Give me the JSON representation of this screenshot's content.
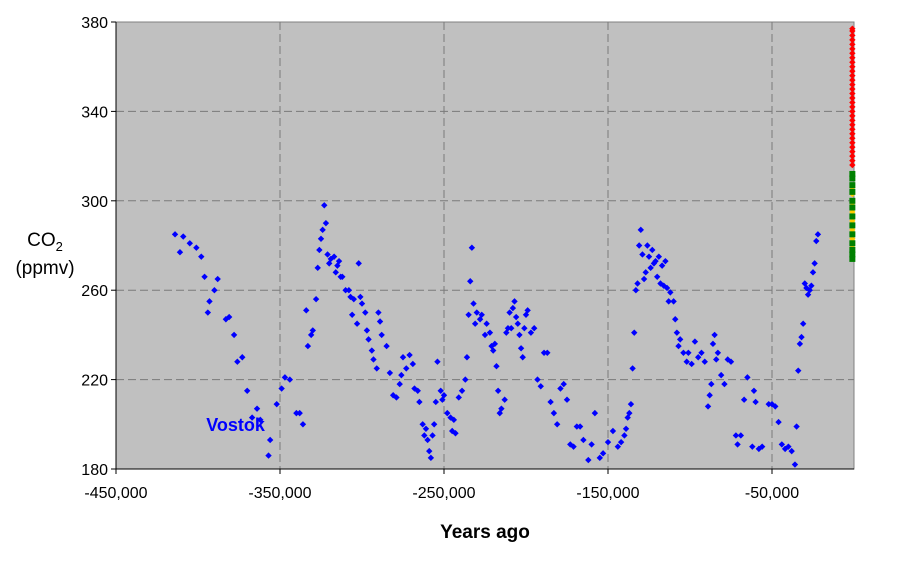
{
  "chart_data": {
    "type": "scatter",
    "xlabel": "Years ago",
    "ylabel_main": "CO",
    "ylabel_sub": "2",
    "ylabel_unit": "(ppmv)",
    "xlim": [
      -450000,
      0
    ],
    "ylim": [
      180,
      380
    ],
    "x_ticks": [
      -450000,
      -350000,
      -250000,
      -150000,
      -50000
    ],
    "x_tick_labels": [
      "-450,000",
      "-350,000",
      "-250,000",
      "-150,000",
      "-50,000"
    ],
    "y_ticks": [
      180,
      220,
      260,
      300,
      340,
      380
    ],
    "y_tick_labels": [
      "180",
      "220",
      "260",
      "300",
      "340",
      "380"
    ],
    "grid": true,
    "plot_background": "#c0c0c0",
    "series": [
      {
        "name": "Vostok",
        "color": "#0000ff",
        "marker": "diamond",
        "points": [
          [
            -414000,
            285
          ],
          [
            -411000,
            277
          ],
          [
            -409000,
            284
          ],
          [
            -405000,
            281
          ],
          [
            -401000,
            279
          ],
          [
            -398000,
            275
          ],
          [
            -396000,
            266
          ],
          [
            -394000,
            250
          ],
          [
            -393000,
            255
          ],
          [
            -390000,
            260
          ],
          [
            -388000,
            265
          ],
          [
            -383000,
            247
          ],
          [
            -381000,
            248
          ],
          [
            -378000,
            240
          ],
          [
            -376000,
            228
          ],
          [
            -373000,
            230
          ],
          [
            -370000,
            215
          ],
          [
            -367000,
            203
          ],
          [
            -364000,
            207
          ],
          [
            -362000,
            202
          ],
          [
            -357000,
            186
          ],
          [
            -356000,
            193
          ],
          [
            -352000,
            209
          ],
          [
            -349000,
            216
          ],
          [
            -347000,
            221
          ],
          [
            -344000,
            220
          ],
          [
            -340000,
            205
          ],
          [
            -338000,
            205
          ],
          [
            -336000,
            200
          ],
          [
            -334000,
            251
          ],
          [
            -333000,
            235
          ],
          [
            -331000,
            240
          ],
          [
            -330000,
            242
          ],
          [
            -328000,
            256
          ],
          [
            -327000,
            270
          ],
          [
            -326000,
            278
          ],
          [
            -325000,
            283
          ],
          [
            -324000,
            287
          ],
          [
            -323000,
            298
          ],
          [
            -322000,
            290
          ],
          [
            -321000,
            276
          ],
          [
            -320000,
            272
          ],
          [
            -319000,
            274
          ],
          [
            -317000,
            275
          ],
          [
            -316000,
            268
          ],
          [
            -315000,
            271
          ],
          [
            -314000,
            273
          ],
          [
            -313000,
            266
          ],
          [
            -312000,
            266
          ],
          [
            -310000,
            260
          ],
          [
            -308000,
            260
          ],
          [
            -307000,
            257
          ],
          [
            -306000,
            249
          ],
          [
            -305000,
            256
          ],
          [
            -303000,
            245
          ],
          [
            -302000,
            272
          ],
          [
            -301000,
            257
          ],
          [
            -300000,
            254
          ],
          [
            -298000,
            250
          ],
          [
            -297000,
            242
          ],
          [
            -296000,
            238
          ],
          [
            -294000,
            233
          ],
          [
            -293000,
            229
          ],
          [
            -291000,
            225
          ],
          [
            -290000,
            250
          ],
          [
            -289000,
            246
          ],
          [
            -288000,
            240
          ],
          [
            -285000,
            235
          ],
          [
            -283000,
            223
          ],
          [
            -281000,
            213
          ],
          [
            -279000,
            212
          ],
          [
            -277000,
            218
          ],
          [
            -276000,
            222
          ],
          [
            -275000,
            230
          ],
          [
            -273000,
            225
          ],
          [
            -271000,
            231
          ],
          [
            -269000,
            227
          ],
          [
            -268000,
            216
          ],
          [
            -266000,
            215
          ],
          [
            -265000,
            210
          ],
          [
            -263000,
            200
          ],
          [
            -262000,
            195
          ],
          [
            -261000,
            198
          ],
          [
            -260000,
            193
          ],
          [
            -259000,
            188
          ],
          [
            -258000,
            185
          ],
          [
            -257000,
            195
          ],
          [
            -256000,
            200
          ],
          [
            -255000,
            210
          ],
          [
            -254000,
            228
          ],
          [
            -252000,
            215
          ],
          [
            -251000,
            211
          ],
          [
            -250000,
            213
          ],
          [
            -248000,
            205
          ],
          [
            -246000,
            203
          ],
          [
            -245000,
            197
          ],
          [
            -244000,
            202
          ],
          [
            -243000,
            196
          ],
          [
            -241000,
            212
          ],
          [
            -239000,
            215
          ],
          [
            -237000,
            220
          ],
          [
            -236000,
            230
          ],
          [
            -235000,
            249
          ],
          [
            -234000,
            264
          ],
          [
            -233000,
            279
          ],
          [
            -232000,
            254
          ],
          [
            -231000,
            245
          ],
          [
            -230000,
            250
          ],
          [
            -228000,
            247
          ],
          [
            -227000,
            249
          ],
          [
            -225000,
            240
          ],
          [
            -224000,
            245
          ],
          [
            -222000,
            241
          ],
          [
            -221000,
            235
          ],
          [
            -220000,
            233
          ],
          [
            -219000,
            236
          ],
          [
            -218000,
            226
          ],
          [
            -217000,
            215
          ],
          [
            -216000,
            205
          ],
          [
            -215000,
            207
          ],
          [
            -213000,
            211
          ],
          [
            -212000,
            241
          ],
          [
            -211000,
            243
          ],
          [
            -210000,
            250
          ],
          [
            -209000,
            243
          ],
          [
            -208000,
            252
          ],
          [
            -207000,
            255
          ],
          [
            -206000,
            248
          ],
          [
            -205000,
            245
          ],
          [
            -204000,
            240
          ],
          [
            -203000,
            234
          ],
          [
            -202000,
            230
          ],
          [
            -201000,
            243
          ],
          [
            -200000,
            249
          ],
          [
            -199000,
            251
          ],
          [
            -197000,
            241
          ],
          [
            -195000,
            243
          ],
          [
            -193000,
            220
          ],
          [
            -191000,
            217
          ],
          [
            -189000,
            232
          ],
          [
            -187000,
            232
          ],
          [
            -185000,
            210
          ],
          [
            -183000,
            205
          ],
          [
            -181000,
            200
          ],
          [
            -179000,
            216
          ],
          [
            -177000,
            218
          ],
          [
            -175000,
            211
          ],
          [
            -173000,
            191
          ],
          [
            -171000,
            190
          ],
          [
            -169000,
            199
          ],
          [
            -167000,
            199
          ],
          [
            -165000,
            193
          ],
          [
            -162000,
            184
          ],
          [
            -160000,
            191
          ],
          [
            -158000,
            205
          ],
          [
            -155000,
            185
          ],
          [
            -153000,
            187
          ],
          [
            -150000,
            192
          ],
          [
            -147000,
            197
          ],
          [
            -144000,
            190
          ],
          [
            -142000,
            192
          ],
          [
            -140000,
            195
          ],
          [
            -139000,
            198
          ],
          [
            -138000,
            203
          ],
          [
            -137000,
            205
          ],
          [
            -136000,
            209
          ],
          [
            -135000,
            225
          ],
          [
            -134000,
            241
          ],
          [
            -133000,
            260
          ],
          [
            -132000,
            263
          ],
          [
            -131000,
            280
          ],
          [
            -130000,
            287
          ],
          [
            -129000,
            276
          ],
          [
            -128000,
            265
          ],
          [
            -127000,
            268
          ],
          [
            -126000,
            280
          ],
          [
            -125000,
            275
          ],
          [
            -124000,
            270
          ],
          [
            -123000,
            278
          ],
          [
            -122000,
            272
          ],
          [
            -121000,
            273
          ],
          [
            -120000,
            266
          ],
          [
            -119000,
            275
          ],
          [
            -118000,
            263
          ],
          [
            -117000,
            271
          ],
          [
            -116000,
            262
          ],
          [
            -115000,
            273
          ],
          [
            -114000,
            261
          ],
          [
            -113000,
            255
          ],
          [
            -112000,
            259
          ],
          [
            -110000,
            255
          ],
          [
            -109000,
            247
          ],
          [
            -108000,
            241
          ],
          [
            -107000,
            235
          ],
          [
            -106000,
            238
          ],
          [
            -104000,
            232
          ],
          [
            -102000,
            228
          ],
          [
            -101000,
            232
          ],
          [
            -99000,
            227
          ],
          [
            -97000,
            237
          ],
          [
            -95000,
            230
          ],
          [
            -93000,
            232
          ],
          [
            -91000,
            228
          ],
          [
            -89000,
            208
          ],
          [
            -88000,
            213
          ],
          [
            -87000,
            218
          ],
          [
            -86000,
            236
          ],
          [
            -85000,
            240
          ],
          [
            -84000,
            229
          ],
          [
            -83000,
            232
          ],
          [
            -81000,
            222
          ],
          [
            -79000,
            218
          ],
          [
            -77000,
            229
          ],
          [
            -75000,
            228
          ],
          [
            -72000,
            195
          ],
          [
            -71000,
            191
          ],
          [
            -69000,
            195
          ],
          [
            -67000,
            211
          ],
          [
            -65000,
            221
          ],
          [
            -62000,
            190
          ],
          [
            -61000,
            215
          ],
          [
            -60000,
            210
          ],
          [
            -58000,
            189
          ],
          [
            -56000,
            190
          ],
          [
            -52000,
            209
          ],
          [
            -50000,
            209
          ],
          [
            -48000,
            208
          ],
          [
            -46000,
            201
          ],
          [
            -44000,
            191
          ],
          [
            -42000,
            189
          ],
          [
            -40000,
            190
          ],
          [
            -38000,
            188
          ],
          [
            -36000,
            182
          ],
          [
            -35000,
            199
          ],
          [
            -34000,
            224
          ],
          [
            -33000,
            236
          ],
          [
            -32000,
            239
          ],
          [
            -31000,
            245
          ],
          [
            -30000,
            263
          ],
          [
            -29000,
            261
          ],
          [
            -28000,
            258
          ],
          [
            -27000,
            260
          ],
          [
            -26000,
            262
          ],
          [
            -25000,
            268
          ],
          [
            -24000,
            272
          ],
          [
            -23000,
            282
          ],
          [
            -22000,
            285
          ]
        ]
      },
      {
        "name": "",
        "color": "#ffcc00",
        "marker": "diamond",
        "points": [
          [
            -1000,
            279
          ],
          [
            -1000,
            283
          ],
          [
            -1000,
            287
          ],
          [
            -1000,
            291
          ],
          [
            -1000,
            295
          ],
          [
            -1000,
            299
          ],
          [
            -1000,
            303
          ],
          [
            -1000,
            306
          ]
        ]
      },
      {
        "name": "",
        "color": "#008000",
        "marker": "square",
        "points": [
          [
            -1000,
            274
          ],
          [
            -1000,
            276
          ],
          [
            -1000,
            278
          ],
          [
            -1000,
            281
          ],
          [
            -1000,
            285
          ],
          [
            -1000,
            289
          ],
          [
            -1000,
            293
          ],
          [
            -1000,
            297
          ],
          [
            -1000,
            300
          ],
          [
            -1000,
            304
          ],
          [
            -1000,
            307
          ],
          [
            -1000,
            310
          ],
          [
            -1000,
            312
          ]
        ]
      },
      {
        "name": "",
        "color": "#ff0000",
        "marker": "diamond",
        "points": [
          [
            -1000,
            316
          ],
          [
            -1000,
            318
          ],
          [
            -1000,
            320
          ],
          [
            -1000,
            322
          ],
          [
            -1000,
            324
          ],
          [
            -1000,
            326
          ],
          [
            -1000,
            328
          ],
          [
            -1000,
            330
          ],
          [
            -1000,
            332
          ],
          [
            -1000,
            334
          ],
          [
            -1000,
            336
          ],
          [
            -1000,
            338
          ],
          [
            -1000,
            340
          ],
          [
            -1000,
            342
          ],
          [
            -1000,
            344
          ],
          [
            -1000,
            346
          ],
          [
            -1000,
            348
          ],
          [
            -1000,
            350
          ],
          [
            -1000,
            352
          ],
          [
            -1000,
            354
          ],
          [
            -1000,
            356
          ],
          [
            -1000,
            358
          ],
          [
            -1000,
            360
          ],
          [
            -1000,
            362
          ],
          [
            -1000,
            364
          ],
          [
            -1000,
            366
          ],
          [
            -1000,
            368
          ],
          [
            -1000,
            370
          ],
          [
            -1000,
            372
          ],
          [
            -1000,
            374
          ],
          [
            -1000,
            376
          ],
          [
            -1000,
            377
          ]
        ]
      }
    ],
    "annotations": [
      {
        "text": "Vostok",
        "x": -395000,
        "y": 197,
        "color": "#0000ff"
      }
    ]
  }
}
